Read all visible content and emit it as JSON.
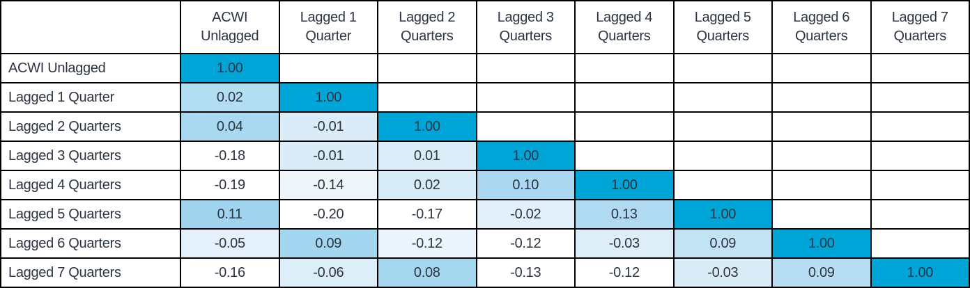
{
  "colors": {
    "diagonal": "#00a5d8",
    "grid": "#000000",
    "text": "#2b3440",
    "background": "#ffffff"
  },
  "table": {
    "corner_label": "",
    "columns": [
      {
        "line1": "ACWI",
        "line2": "Unlagged"
      },
      {
        "line1": "Lagged 1",
        "line2": "Quarter"
      },
      {
        "line1": "Lagged 2",
        "line2": "Quarters"
      },
      {
        "line1": "Lagged 3",
        "line2": "Quarters"
      },
      {
        "line1": "Lagged 4",
        "line2": "Quarters"
      },
      {
        "line1": "Lagged 5",
        "line2": "Quarters"
      },
      {
        "line1": "Lagged 6",
        "line2": "Quarters"
      },
      {
        "line1": "Lagged 7",
        "line2": "Quarters"
      }
    ],
    "rows": [
      {
        "label": "ACWI Unlagged",
        "cells": [
          {
            "v": "1.00",
            "bg": "#00a5d8"
          },
          {
            "v": "",
            "bg": "#ffffff"
          },
          {
            "v": "",
            "bg": "#ffffff"
          },
          {
            "v": "",
            "bg": "#ffffff"
          },
          {
            "v": "",
            "bg": "#ffffff"
          },
          {
            "v": "",
            "bg": "#ffffff"
          },
          {
            "v": "",
            "bg": "#ffffff"
          },
          {
            "v": "",
            "bg": "#ffffff"
          }
        ]
      },
      {
        "label": "Lagged 1 Quarter",
        "cells": [
          {
            "v": "0.02",
            "bg": "#b3ddf2"
          },
          {
            "v": "1.00",
            "bg": "#00a5d8"
          },
          {
            "v": "",
            "bg": "#ffffff"
          },
          {
            "v": "",
            "bg": "#ffffff"
          },
          {
            "v": "",
            "bg": "#ffffff"
          },
          {
            "v": "",
            "bg": "#ffffff"
          },
          {
            "v": "",
            "bg": "#ffffff"
          },
          {
            "v": "",
            "bg": "#ffffff"
          }
        ]
      },
      {
        "label": "Lagged 2 Quarters",
        "cells": [
          {
            "v": "0.04",
            "bg": "#a9d9f0"
          },
          {
            "v": "-0.01",
            "bg": "#d9ecf7"
          },
          {
            "v": "1.00",
            "bg": "#00a5d8"
          },
          {
            "v": "",
            "bg": "#ffffff"
          },
          {
            "v": "",
            "bg": "#ffffff"
          },
          {
            "v": "",
            "bg": "#ffffff"
          },
          {
            "v": "",
            "bg": "#ffffff"
          },
          {
            "v": "",
            "bg": "#ffffff"
          }
        ]
      },
      {
        "label": "Lagged 3 Quarters",
        "cells": [
          {
            "v": "-0.18",
            "bg": "#ffffff"
          },
          {
            "v": "-0.01",
            "bg": "#d9ecf7"
          },
          {
            "v": "0.01",
            "bg": "#daedf8"
          },
          {
            "v": "1.00",
            "bg": "#00a5d8"
          },
          {
            "v": "",
            "bg": "#ffffff"
          },
          {
            "v": "",
            "bg": "#ffffff"
          },
          {
            "v": "",
            "bg": "#ffffff"
          },
          {
            "v": "",
            "bg": "#ffffff"
          }
        ]
      },
      {
        "label": "Lagged 4 Quarters",
        "cells": [
          {
            "v": "-0.19",
            "bg": "#ffffff"
          },
          {
            "v": "-0.14",
            "bg": "#eef6fc"
          },
          {
            "v": "0.02",
            "bg": "#d8ecf8"
          },
          {
            "v": "0.10",
            "bg": "#abd8f0"
          },
          {
            "v": "1.00",
            "bg": "#00a5d8"
          },
          {
            "v": "",
            "bg": "#ffffff"
          },
          {
            "v": "",
            "bg": "#ffffff"
          },
          {
            "v": "",
            "bg": "#ffffff"
          }
        ]
      },
      {
        "label": "Lagged 5 Quarters",
        "cells": [
          {
            "v": "0.11",
            "bg": "#a0d4ee"
          },
          {
            "v": "-0.20",
            "bg": "#ffffff"
          },
          {
            "v": "-0.17",
            "bg": "#ffffff"
          },
          {
            "v": "-0.02",
            "bg": "#e2f0f9"
          },
          {
            "v": "0.13",
            "bg": "#afdaf1"
          },
          {
            "v": "1.00",
            "bg": "#00a5d8"
          },
          {
            "v": "",
            "bg": "#ffffff"
          },
          {
            "v": "",
            "bg": "#ffffff"
          }
        ]
      },
      {
        "label": "Lagged 6 Quarters",
        "cells": [
          {
            "v": "-0.05",
            "bg": "#e4f1fa"
          },
          {
            "v": "0.09",
            "bg": "#a3d6ef"
          },
          {
            "v": "-0.12",
            "bg": "#ecf5fb"
          },
          {
            "v": "-0.12",
            "bg": "#ffffff"
          },
          {
            "v": "-0.03",
            "bg": "#deeef8"
          },
          {
            "v": "0.09",
            "bg": "#c2e3f4"
          },
          {
            "v": "1.00",
            "bg": "#00a5d8"
          },
          {
            "v": "",
            "bg": "#ffffff"
          }
        ]
      },
      {
        "label": "Lagged 7 Quarters",
        "cells": [
          {
            "v": "-0.16",
            "bg": "#ffffff"
          },
          {
            "v": "-0.06",
            "bg": "#dceef8"
          },
          {
            "v": "0.08",
            "bg": "#a5d7ef"
          },
          {
            "v": "-0.13",
            "bg": "#ffffff"
          },
          {
            "v": "-0.12",
            "bg": "#ffffff"
          },
          {
            "v": "-0.03",
            "bg": "#d9ecf7"
          },
          {
            "v": "0.09",
            "bg": "#b7def2"
          },
          {
            "v": "1.00",
            "bg": "#00a5d8"
          }
        ]
      }
    ]
  },
  "chart_data": {
    "type": "heatmap",
    "title": "",
    "subtitle": "",
    "legend": "none",
    "columns": [
      "ACWI Unlagged",
      "Lagged 1 Quarter",
      "Lagged 2 Quarters",
      "Lagged 3 Quarters",
      "Lagged 4 Quarters",
      "Lagged 5 Quarters",
      "Lagged 6 Quarters",
      "Lagged 7 Quarters"
    ],
    "rows": [
      "ACWI Unlagged",
      "Lagged 1 Quarter",
      "Lagged 2 Quarters",
      "Lagged 3 Quarters",
      "Lagged 4 Quarters",
      "Lagged 5 Quarters",
      "Lagged 6 Quarters",
      "Lagged 7 Quarters"
    ],
    "matrix": [
      [
        1.0,
        null,
        null,
        null,
        null,
        null,
        null,
        null
      ],
      [
        0.02,
        1.0,
        null,
        null,
        null,
        null,
        null,
        null
      ],
      [
        0.04,
        -0.01,
        1.0,
        null,
        null,
        null,
        null,
        null
      ],
      [
        -0.18,
        -0.01,
        0.01,
        1.0,
        null,
        null,
        null,
        null
      ],
      [
        -0.19,
        -0.14,
        0.02,
        0.1,
        1.0,
        null,
        null,
        null
      ],
      [
        0.11,
        -0.2,
        -0.17,
        -0.02,
        0.13,
        1.0,
        null,
        null
      ],
      [
        -0.05,
        0.09,
        -0.12,
        -0.12,
        -0.03,
        0.09,
        1.0,
        null
      ],
      [
        -0.16,
        -0.06,
        0.08,
        -0.13,
        -0.12,
        -0.03,
        0.09,
        1.0
      ]
    ],
    "value_range": [
      -0.2,
      1.0
    ],
    "color_scale": {
      "low": "#ffffff",
      "high": "#00a5d8",
      "scaling": "per-column"
    }
  }
}
